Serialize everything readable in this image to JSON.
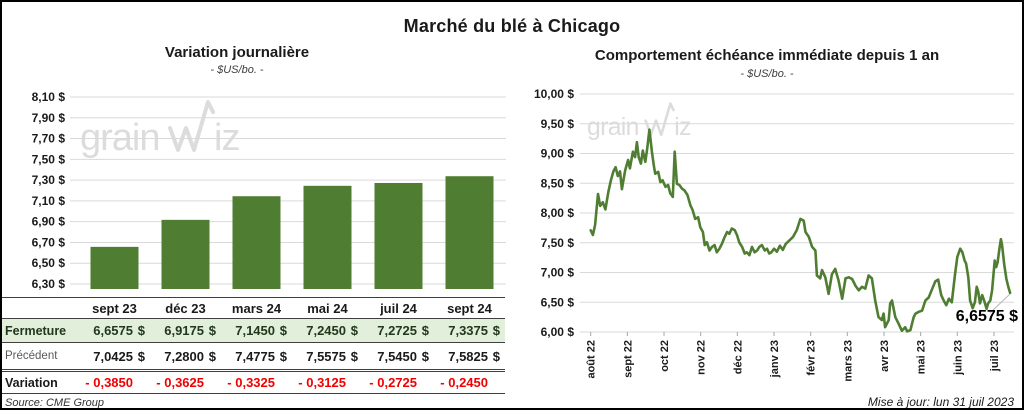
{
  "page": {
    "title": "Marché du blé à Chicago"
  },
  "watermark": {
    "part1": "grain",
    "part2": "iz"
  },
  "footer": {
    "source": "Source: CME Group",
    "updated": "Mise à jour: lun 31 juil 2023"
  },
  "table": {
    "header": [
      "sept 23",
      "déc 23",
      "mars 24",
      "mai 24",
      "juil 24",
      "sept 24"
    ],
    "currency": "$",
    "rows": [
      {
        "label": "Fermeture",
        "values": [
          "6,6575",
          "6,9175",
          "7,1450",
          "7,2450",
          "7,2725",
          "7,3375"
        ]
      },
      {
        "label": "Précédent",
        "values": [
          "7,0425",
          "7,2800",
          "7,4775",
          "7,5575",
          "7,5450",
          "7,5825"
        ]
      },
      {
        "label": "Variation",
        "values": [
          "- 0,3850",
          "- 0,3625",
          "- 0,3325",
          "- 0,3125",
          "- 0,2725",
          "- 0,2450"
        ]
      }
    ]
  },
  "chart_data": [
    {
      "type": "bar",
      "title": "Variation journalière",
      "subtitle": "- $US/bo. -",
      "categories": [
        "sept 23",
        "déc 23",
        "mars 24",
        "mai 24",
        "juil 24",
        "sept 24"
      ],
      "values": [
        6.6575,
        6.9175,
        7.145,
        7.245,
        7.2725,
        7.3375
      ],
      "ylim": [
        6.3,
        8.1
      ],
      "ytick_step": 0.2,
      "ytick_labels": [
        "8,10 $",
        "7,90 $",
        "7,70 $",
        "7,50 $",
        "7,30 $",
        "7,10 $",
        "6,90 $",
        "6,70 $",
        "6,50 $",
        "6,30 $"
      ],
      "bar_color": "#4f7e32",
      "grid": true,
      "legend": false
    },
    {
      "type": "line",
      "title": "Comportement échéance immédiate depuis 1 an",
      "subtitle": "- $US/bo. -",
      "x_tick_labels": [
        "août 22",
        "sept 22",
        "oct 22",
        "nov 22",
        "déc 22",
        "janv 23",
        "févr 23",
        "mars 23",
        "avr 23",
        "mai 23",
        "juin 23",
        "juil 23"
      ],
      "ylim": [
        6.0,
        10.0
      ],
      "ytick_step": 0.5,
      "ytick_labels": [
        "10,00 $",
        "9,50 $",
        "9,00 $",
        "8,50 $",
        "8,00 $",
        "7,50 $",
        "7,00 $",
        "6,50 $",
        "6,00 $"
      ],
      "line_color": "#4f7e32",
      "end_label": "6,6575 $",
      "grid": true,
      "legend": false,
      "points": [
        [
          0.0,
          7.71
        ],
        [
          0.06,
          7.63
        ],
        [
          0.12,
          7.8
        ],
        [
          0.2,
          8.32
        ],
        [
          0.26,
          8.12
        ],
        [
          0.33,
          8.18
        ],
        [
          0.4,
          8.06
        ],
        [
          0.48,
          8.35
        ],
        [
          0.55,
          8.55
        ],
        [
          0.62,
          8.7
        ],
        [
          0.68,
          8.77
        ],
        [
          0.74,
          8.62
        ],
        [
          0.8,
          8.7
        ],
        [
          0.85,
          8.4
        ],
        [
          0.94,
          8.72
        ],
        [
          1.02,
          8.89
        ],
        [
          1.07,
          8.75
        ],
        [
          1.15,
          9.03
        ],
        [
          1.21,
          8.94
        ],
        [
          1.26,
          9.19
        ],
        [
          1.31,
          8.94
        ],
        [
          1.37,
          8.83
        ],
        [
          1.42,
          9.05
        ],
        [
          1.49,
          8.86
        ],
        [
          1.54,
          9.08
        ],
        [
          1.6,
          9.4
        ],
        [
          1.67,
          9.03
        ],
        [
          1.72,
          8.8
        ],
        [
          1.76,
          8.66
        ],
        [
          1.84,
          8.69
        ],
        [
          1.9,
          8.52
        ],
        [
          1.96,
          8.55
        ],
        [
          2.04,
          8.44
        ],
        [
          2.11,
          8.47
        ],
        [
          2.17,
          8.33
        ],
        [
          2.24,
          8.27
        ],
        [
          2.29,
          9.03
        ],
        [
          2.35,
          8.49
        ],
        [
          2.42,
          8.47
        ],
        [
          2.49,
          8.41
        ],
        [
          2.56,
          8.38
        ],
        [
          2.64,
          8.3
        ],
        [
          2.72,
          8.13
        ],
        [
          2.78,
          8.05
        ],
        [
          2.85,
          7.9
        ],
        [
          2.93,
          7.93
        ],
        [
          2.99,
          7.76
        ],
        [
          3.06,
          7.68
        ],
        [
          3.11,
          7.46
        ],
        [
          3.17,
          7.51
        ],
        [
          3.24,
          7.37
        ],
        [
          3.31,
          7.43
        ],
        [
          3.38,
          7.46
        ],
        [
          3.44,
          7.34
        ],
        [
          3.51,
          7.4
        ],
        [
          3.58,
          7.48
        ],
        [
          3.65,
          7.59
        ],
        [
          3.72,
          7.68
        ],
        [
          3.78,
          7.65
        ],
        [
          3.85,
          7.74
        ],
        [
          3.93,
          7.71
        ],
        [
          3.99,
          7.63
        ],
        [
          4.05,
          7.51
        ],
        [
          4.13,
          7.43
        ],
        [
          4.2,
          7.32
        ],
        [
          4.26,
          7.34
        ],
        [
          4.33,
          7.29
        ],
        [
          4.4,
          7.43
        ],
        [
          4.47,
          7.34
        ],
        [
          4.54,
          7.37
        ],
        [
          4.6,
          7.43
        ],
        [
          4.67,
          7.46
        ],
        [
          4.75,
          7.37
        ],
        [
          4.81,
          7.4
        ],
        [
          4.87,
          7.32
        ],
        [
          4.93,
          7.34
        ],
        [
          5.0,
          7.4
        ],
        [
          5.08,
          7.35
        ],
        [
          5.16,
          7.45
        ],
        [
          5.24,
          7.38
        ],
        [
          5.32,
          7.48
        ],
        [
          5.42,
          7.54
        ],
        [
          5.52,
          7.6
        ],
        [
          5.62,
          7.71
        ],
        [
          5.72,
          7.9
        ],
        [
          5.81,
          7.87
        ],
        [
          5.86,
          7.68
        ],
        [
          5.95,
          7.6
        ],
        [
          6.04,
          7.43
        ],
        [
          6.13,
          7.37
        ],
        [
          6.17,
          6.95
        ],
        [
          6.26,
          6.9
        ],
        [
          6.31,
          7.04
        ],
        [
          6.4,
          6.92
        ],
        [
          6.49,
          6.64
        ],
        [
          6.58,
          6.97
        ],
        [
          6.67,
          7.06
        ],
        [
          6.76,
          6.87
        ],
        [
          6.86,
          6.56
        ],
        [
          6.95,
          6.9
        ],
        [
          7.04,
          6.92
        ],
        [
          7.13,
          6.89
        ],
        [
          7.22,
          6.78
        ],
        [
          7.31,
          6.7
        ],
        [
          7.4,
          6.76
        ],
        [
          7.49,
          6.73
        ],
        [
          7.58,
          6.95
        ],
        [
          7.67,
          6.9
        ],
        [
          7.76,
          6.53
        ],
        [
          7.85,
          6.25
        ],
        [
          7.94,
          6.2
        ],
        [
          7.99,
          6.31
        ],
        [
          8.03,
          6.08
        ],
        [
          8.13,
          6.2
        ],
        [
          8.17,
          6.48
        ],
        [
          8.22,
          6.53
        ],
        [
          8.31,
          6.25
        ],
        [
          8.4,
          6.14
        ],
        [
          8.49,
          6.02
        ],
        [
          8.58,
          6.08
        ],
        [
          8.63,
          6.01
        ],
        [
          8.72,
          6.03
        ],
        [
          8.81,
          6.25
        ],
        [
          8.86,
          6.31
        ],
        [
          8.95,
          6.34
        ],
        [
          9.04,
          6.36
        ],
        [
          9.13,
          6.53
        ],
        [
          9.22,
          6.58
        ],
        [
          9.3,
          6.7
        ],
        [
          9.4,
          6.85
        ],
        [
          9.48,
          6.88
        ],
        [
          9.56,
          6.62
        ],
        [
          9.63,
          6.53
        ],
        [
          9.7,
          6.45
        ],
        [
          9.77,
          6.56
        ],
        [
          9.85,
          6.5
        ],
        [
          9.94,
          6.98
        ],
        [
          10.0,
          7.26
        ],
        [
          10.08,
          7.4
        ],
        [
          10.14,
          7.34
        ],
        [
          10.2,
          7.2
        ],
        [
          10.24,
          7.15
        ],
        [
          10.3,
          6.92
        ],
        [
          10.35,
          6.53
        ],
        [
          10.42,
          6.4
        ],
        [
          10.48,
          6.5
        ],
        [
          10.53,
          6.76
        ],
        [
          10.57,
          6.68
        ],
        [
          10.62,
          6.48
        ],
        [
          10.68,
          6.62
        ],
        [
          10.73,
          6.53
        ],
        [
          10.8,
          6.39
        ],
        [
          10.84,
          6.48
        ],
        [
          10.9,
          6.53
        ],
        [
          10.95,
          6.7
        ],
        [
          11.02,
          7.2
        ],
        [
          11.06,
          7.09
        ],
        [
          11.1,
          7.17
        ],
        [
          11.14,
          7.36
        ],
        [
          11.19,
          7.56
        ],
        [
          11.22,
          7.47
        ],
        [
          11.28,
          7.14
        ],
        [
          11.34,
          6.89
        ],
        [
          11.39,
          6.76
        ],
        [
          11.44,
          6.6575
        ]
      ]
    }
  ]
}
